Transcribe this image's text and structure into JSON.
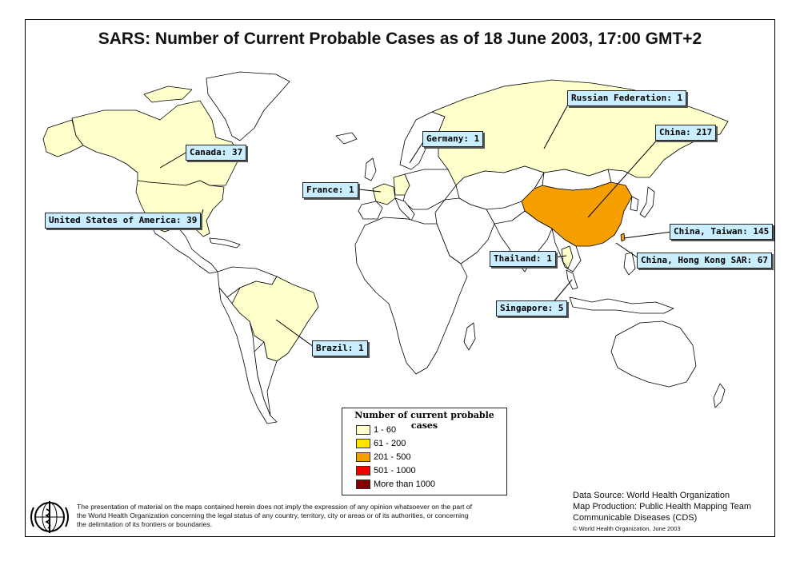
{
  "title": "SARS: Number of Current Probable Cases as of 18 June 2003, 17:00 GMT+2",
  "callouts": {
    "russia": "Russian Federation: 1",
    "china": "China: 217",
    "germany": "Germany: 1",
    "canada": "Canada: 37",
    "france": "France: 1",
    "usa": "United States of America: 39",
    "taiwan": "China, Taiwan: 145",
    "thailand": "Thailand: 1",
    "hongkong": "China, Hong Kong SAR: 67",
    "singapore": "Singapore: 5",
    "brazil": "Brazil: 1"
  },
  "legend": {
    "title": "Number of current probable cases",
    "items": [
      {
        "label": "1 - 60",
        "color": "#ffffcc"
      },
      {
        "label": "61 - 200",
        "color": "#ffe400"
      },
      {
        "label": "201 - 500",
        "color": "#f5a000"
      },
      {
        "label": "501 - 1000",
        "color": "#ee0000"
      },
      {
        "label": "More than 1000",
        "color": "#800000"
      }
    ]
  },
  "disclaimer": "The presentation of material on the maps contained herein does not imply the expression of any opinion whatsoever on the part of the World Health Organization concerning the legal status of any country, territory, city or areas or of its authorities, or concerning the delimitation of its frontiers or boundaries.",
  "credits": {
    "source": "Data Source: World Health Organization",
    "production": "Map Production: Public Health Mapping Team",
    "department": "Communicable Diseases (CDS)",
    "copyright": "© World Health Organization, June 2003"
  },
  "map_colors": {
    "affected_low": "#ffffcc",
    "affected_china": "#f5a000",
    "unaffected": "#ffffff",
    "border": "#000000",
    "callout_bg": "#c8eeff"
  }
}
